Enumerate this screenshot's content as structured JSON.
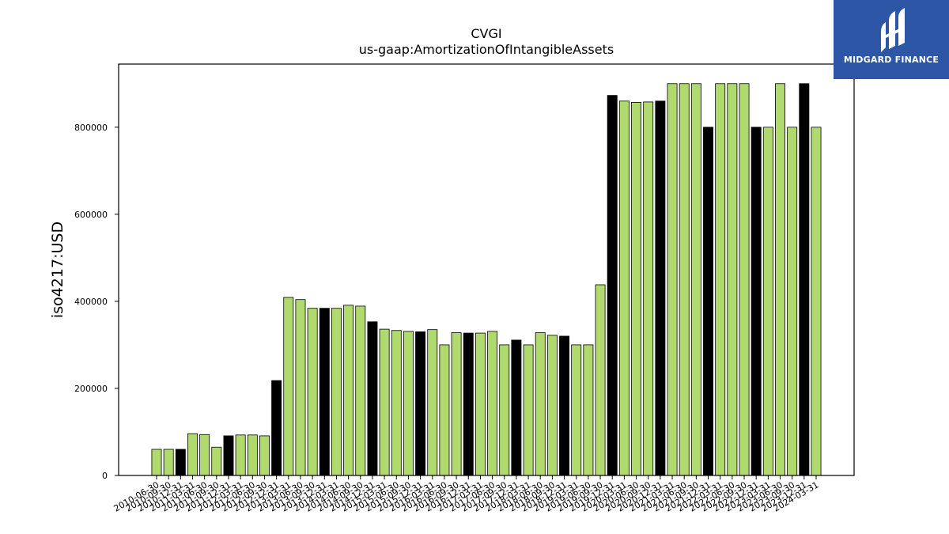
{
  "chart_data": {
    "type": "bar",
    "title": "CVGI",
    "subtitle": "us-gaap:AmortizationOfIntangibleAssets",
    "ylabel": "iso4217:USD",
    "xlabel": "",
    "ylim": [
      0,
      945000
    ],
    "yticks": [
      0,
      200000,
      400000,
      600000,
      800000
    ],
    "grid": false,
    "colors": {
      "normal": "#b0d96e",
      "highlight": "#000000",
      "edge": "#000000"
    },
    "categories": [
      "2010-06-30",
      "2010-09-30",
      "2010-12-31",
      "2011-03-31",
      "2011-06-30",
      "2011-09-30",
      "2011-12-31",
      "2012-03-31",
      "2012-06-30",
      "2012-09-30",
      "2012-12-31",
      "2013-03-31",
      "2013-06-30",
      "2013-09-30",
      "2013-12-31",
      "2014-03-31",
      "2014-06-30",
      "2014-09-30",
      "2014-12-31",
      "2015-03-31",
      "2015-06-30",
      "2015-09-30",
      "2015-12-31",
      "2016-03-31",
      "2016-06-30",
      "2016-09-30",
      "2016-12-31",
      "2017-03-31",
      "2017-06-30",
      "2017-09-30",
      "2017-12-31",
      "2018-03-31",
      "2018-06-30",
      "2018-09-30",
      "2018-12-31",
      "2019-03-31",
      "2019-06-30",
      "2019-09-30",
      "2019-12-31",
      "2020-03-31",
      "2020-06-30",
      "2020-09-30",
      "2020-12-31",
      "2021-03-31",
      "2021-06-30",
      "2021-09-30",
      "2021-12-31",
      "2022-03-31",
      "2022-06-30",
      "2022-09-30",
      "2022-12-31",
      "2023-03-31",
      "2023-06-30",
      "2023-09-30",
      "2023-12-31",
      "2024-03-31"
    ],
    "values": [
      60000,
      60000,
      60000,
      96000,
      94000,
      65000,
      91000,
      93000,
      93000,
      91000,
      218000,
      409000,
      404000,
      384000,
      384000,
      384000,
      391000,
      389000,
      353000,
      336000,
      333000,
      331000,
      330000,
      335000,
      300000,
      328000,
      327000,
      327000,
      331000,
      300000,
      311000,
      300000,
      328000,
      322000,
      320000,
      300000,
      300000,
      438000,
      873000,
      860000,
      857000,
      858000,
      860000,
      900000,
      900000,
      900000,
      800000,
      900000,
      900000,
      900000,
      800000,
      800000,
      900000,
      800000,
      900000,
      800000
    ],
    "highlight": [
      false,
      false,
      true,
      false,
      false,
      false,
      true,
      false,
      false,
      false,
      true,
      false,
      false,
      false,
      true,
      false,
      false,
      false,
      true,
      false,
      false,
      false,
      true,
      false,
      false,
      false,
      true,
      false,
      false,
      false,
      true,
      false,
      false,
      false,
      true,
      false,
      false,
      false,
      true,
      false,
      false,
      false,
      true,
      false,
      false,
      false,
      true,
      false,
      false,
      false,
      true,
      false,
      false,
      false,
      true,
      false
    ]
  },
  "logo": {
    "text": "MIDGARD FINANCE"
  }
}
